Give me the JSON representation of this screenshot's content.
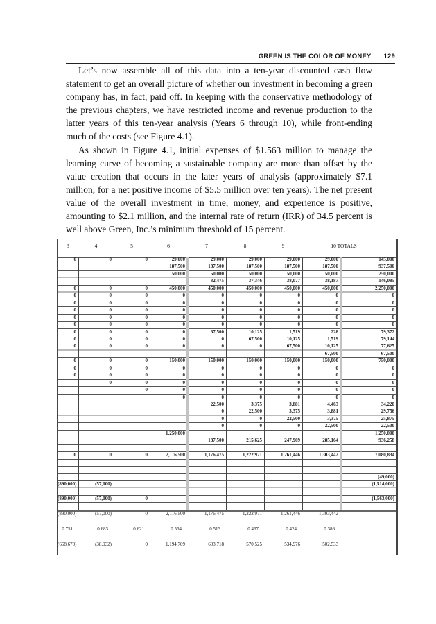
{
  "running_head": {
    "title": "GREEN IS THE COLOR OF MONEY",
    "page_number": "129"
  },
  "paragraphs": [
    "Let’s now assemble all of this data into a ten-year discounted cash flow statement to get an overall picture of whether our investment in becoming a green company has, in fact, paid off. In keeping with the conservative methodology of the previous chapters, we have restricted income and revenue production to the latter years of this ten-year analysis (Years 6 through 10), while front-ending much of the costs (see Figure 4.1).",
    "As shown in Figure 4.1, initial expenses of $1.563 million to manage the learning curve of becoming a sustainable company are more than offset by the value creation that occurs in the later years of analysis (approximately $7.1 million, for a net positive income of $5.5 million over ten years). The net present value of the overall investment in time, money, and experience is positive, amounting to $2.1 million, and the internal rate of return (IRR) of 34.5 percent is well above Green, Inc.’s minimum threshold of 15 percent."
  ],
  "table": {
    "headers": [
      "3",
      "4",
      "5",
      "6",
      "7",
      "8",
      "9",
      "10 TOTALS"
    ],
    "rows": [
      [
        "0",
        "0",
        "0",
        "29,000",
        "29,000",
        "29,000",
        "29,000",
        "29,000",
        "145,000"
      ],
      [
        "",
        "",
        "",
        "187,500",
        "187,500",
        "187,500",
        "187,500",
        "187,500",
        "937,500"
      ],
      [
        "",
        "",
        "",
        "50,000",
        "50,000",
        "50,000",
        "50,000",
        "50,000",
        "250,000"
      ],
      [
        "",
        "",
        "",
        "",
        "32,475",
        "37,346",
        "38,077",
        "38,187",
        "146,085"
      ],
      [
        "0",
        "0",
        "0",
        "450,000",
        "450,000",
        "450,000",
        "450,000",
        "450,000",
        "2,250,000"
      ],
      [
        "0",
        "0",
        "0",
        "0",
        "0",
        "0",
        "0",
        "0",
        "0"
      ],
      [
        "0",
        "0",
        "0",
        "0",
        "0",
        "0",
        "0",
        "0",
        "0"
      ],
      [
        "0",
        "0",
        "0",
        "0",
        "0",
        "0",
        "0",
        "0",
        "0"
      ],
      [
        "0",
        "0",
        "0",
        "0",
        "0",
        "0",
        "0",
        "0",
        "0"
      ],
      [
        "0",
        "0",
        "0",
        "0",
        "0",
        "0",
        "0",
        "0",
        "0"
      ],
      [
        "0",
        "0",
        "0",
        "0",
        "67,500",
        "10,125",
        "1,519",
        "228",
        "79,372"
      ],
      [
        "0",
        "0",
        "0",
        "0",
        "0",
        "67,500",
        "10,125",
        "1,519",
        "79,144"
      ],
      [
        "0",
        "0",
        "0",
        "0",
        "0",
        "0",
        "67,500",
        "10,125",
        "77,625"
      ],
      [
        "",
        "",
        "",
        "",
        "",
        "",
        "",
        "67,500",
        "67,500"
      ],
      [
        "0",
        "0",
        "0",
        "150,000",
        "150,000",
        "150,000",
        "150,000",
        "150,000",
        "750,000"
      ],
      [
        "0",
        "0",
        "0",
        "0",
        "0",
        "0",
        "0",
        "0",
        "0"
      ],
      [
        "0",
        "0",
        "0",
        "0",
        "0",
        "0",
        "0",
        "0",
        "0"
      ],
      [
        "",
        "0",
        "0",
        "0",
        "0",
        "0",
        "0",
        "0",
        "0"
      ],
      [
        "",
        "",
        "0",
        "0",
        "0",
        "0",
        "0",
        "0",
        "0"
      ],
      [
        "",
        "",
        "",
        "0",
        "0",
        "0",
        "0",
        "0",
        "0"
      ],
      [
        "",
        "",
        "",
        "",
        "22,500",
        "3,375",
        "3,881",
        "4,463",
        "34,220"
      ],
      [
        "",
        "",
        "",
        "",
        "0",
        "22,500",
        "3,375",
        "3,881",
        "29,756"
      ],
      [
        "",
        "",
        "",
        "",
        "0",
        "0",
        "22,500",
        "3,375",
        "25,875"
      ],
      [
        "",
        "",
        "",
        "",
        "0",
        "0",
        "0",
        "22,500",
        "22,500"
      ],
      [
        "",
        "",
        "",
        "1,250,000",
        "",
        "",
        "",
        "",
        "1,250,000"
      ],
      [
        "",
        "",
        "",
        "",
        "187,500",
        "215,625",
        "247,969",
        "285,164",
        "936,258"
      ],
      [
        "",
        "",
        "",
        "",
        "",
        "",
        "",
        "",
        ""
      ],
      [
        "0",
        "0",
        "0",
        "2,116,500",
        "1,176,475",
        "1,222,971",
        "1,261,446",
        "1,303,442",
        "7,080,834"
      ],
      [
        "",
        "",
        "",
        "",
        "",
        "",
        "",
        "",
        ""
      ],
      [
        "",
        "",
        "",
        "",
        "",
        "",
        "",
        "",
        ""
      ],
      [
        "",
        "",
        "",
        "",
        "",
        "",
        "",
        "",
        "(49,000)"
      ],
      [
        "(890,000)",
        "(57,000)",
        "",
        "",
        "",
        "",
        "",
        "",
        "(1,514,000)"
      ],
      [
        "",
        "",
        "",
        "",
        "",
        "",
        "",
        "",
        ""
      ],
      [
        "(890,000)",
        "(57,000)",
        "0",
        "",
        "",
        "",
        "",
        "",
        "(1,563,000)"
      ],
      [
        "",
        "",
        "",
        "",
        "",
        "",
        "",
        "",
        ""
      ]
    ],
    "summary_rows": [
      [
        "(890,000)",
        "(57,000)",
        "0",
        "2,116,500",
        "1,176,475",
        "1,222,971",
        "1,261,446",
        "1,303,442"
      ],
      [
        "0.751",
        "0.683",
        "0.621",
        "0.564",
        "0.513",
        "0.467",
        "0.424",
        "0.386"
      ],
      [
        "(668,670)",
        "(38,932)",
        "0",
        "1,194,709",
        "603,718",
        "570,525",
        "534,976",
        "502,533"
      ]
    ]
  }
}
